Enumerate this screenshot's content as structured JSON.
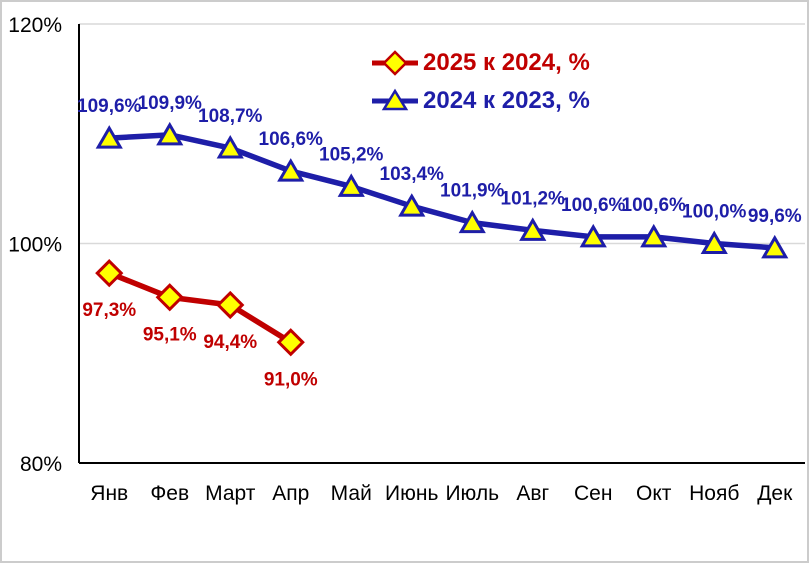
{
  "chart_data": {
    "type": "line",
    "categories": [
      "Янв",
      "Фев",
      "Март",
      "Апр",
      "Май",
      "Июнь",
      "Июль",
      "Авг",
      "Сен",
      "Окт",
      "Нояб",
      "Дек"
    ],
    "series": [
      {
        "name": "2025 к 2024, %",
        "color": "#c00000",
        "marker": "diamond",
        "marker_fill": "#ffff00",
        "label_position": "below",
        "values": [
          97.3,
          95.1,
          94.4,
          91.0
        ],
        "labels": [
          "97,3%",
          "95,1%",
          "94,4%",
          "91,0%"
        ]
      },
      {
        "name": "2024 к 2023, %",
        "color": "#1e1ea8",
        "marker": "triangle",
        "marker_fill": "#ffff00",
        "label_position": "above",
        "values": [
          109.6,
          109.9,
          108.7,
          106.6,
          105.2,
          103.4,
          101.9,
          101.2,
          100.6,
          100.6,
          100.0,
          99.6
        ],
        "labels": [
          "109,6%",
          "109,9%",
          "108,7%",
          "106,6%",
          "105,2%",
          "103,4%",
          "101,9%",
          "101,2%",
          "100,6%",
          "100,6%",
          "100,0%",
          "99,6%"
        ]
      }
    ],
    "ylim": [
      80,
      120
    ],
    "yticks": [
      {
        "value": 120,
        "label": "120%"
      },
      {
        "value": 100,
        "label": "100%"
      },
      {
        "value": 80,
        "label": "80%"
      }
    ],
    "grid": "horizontal",
    "legend_position": "top-center",
    "title": "",
    "xlabel": "",
    "ylabel": ""
  },
  "colors": {
    "gridline": "#d9d9d9",
    "axis": "#000000",
    "tick_text": "#000000",
    "background": "#ffffff"
  }
}
